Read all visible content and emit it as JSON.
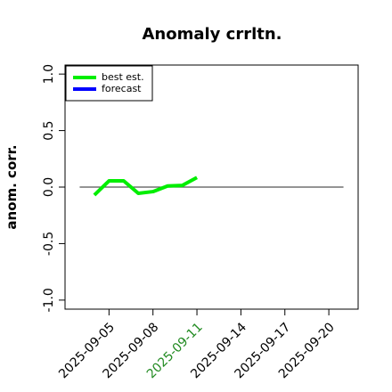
{
  "chart_data": {
    "type": "line",
    "title": "Anomaly crrltn.",
    "y_label": "anom. corr.",
    "x": [
      "2025-09-04",
      "2025-09-05",
      "2025-09-06",
      "2025-09-07",
      "2025-09-08",
      "2025-09-09",
      "2025-09-10",
      "2025-09-11"
    ],
    "series": [
      {
        "name": "best est.",
        "color": "#00ee00",
        "values": [
          -0.07,
          0.055,
          0.055,
          -0.055,
          -0.04,
          0.01,
          0.015,
          0.085
        ]
      },
      {
        "name": "forecast",
        "color": "#0000ff",
        "values": [
          null,
          null,
          null,
          null,
          null,
          null,
          null,
          null
        ]
      }
    ],
    "xlim": [
      "2025-09-02",
      "2025-09-22"
    ],
    "xticks": [
      "2025-09-05",
      "2025-09-08",
      "2025-09-11",
      "2025-09-14",
      "2025-09-17",
      "2025-09-20"
    ],
    "highlight_xtick": {
      "value": "2025-09-11",
      "color": "#228b22"
    },
    "ylim": [
      -1.08,
      1.08
    ],
    "yticks": [
      {
        "value": -1,
        "label": "-1.0"
      },
      -0.5,
      {
        "value": 0,
        "label": "0.0"
      },
      0.5,
      {
        "value": 1,
        "label": "1.0"
      }
    ],
    "hline": {
      "y": 0,
      "x": [
        "2025-09-03",
        "2025-09-21"
      ],
      "color": "#555555"
    },
    "legend": "top-left"
  }
}
